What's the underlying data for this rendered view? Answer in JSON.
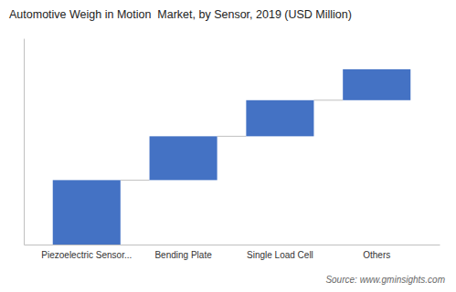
{
  "chart_data": {
    "type": "waterfall",
    "title": "Automotive Weigh in Motion  Market, by Sensor, 2019 (USD Million)",
    "categories": [
      "Piezoelectric Sensor...",
      "Bending Plate",
      "Single Load Cell",
      "Others"
    ],
    "values": [
      2.5,
      1.7,
      1.4,
      1.2
    ],
    "color": "#4472C4",
    "ylim": [
      0,
      8
    ],
    "grid": false,
    "tick_labels": "x",
    "annotations": [
      "Source: www.gminsights.com"
    ]
  }
}
